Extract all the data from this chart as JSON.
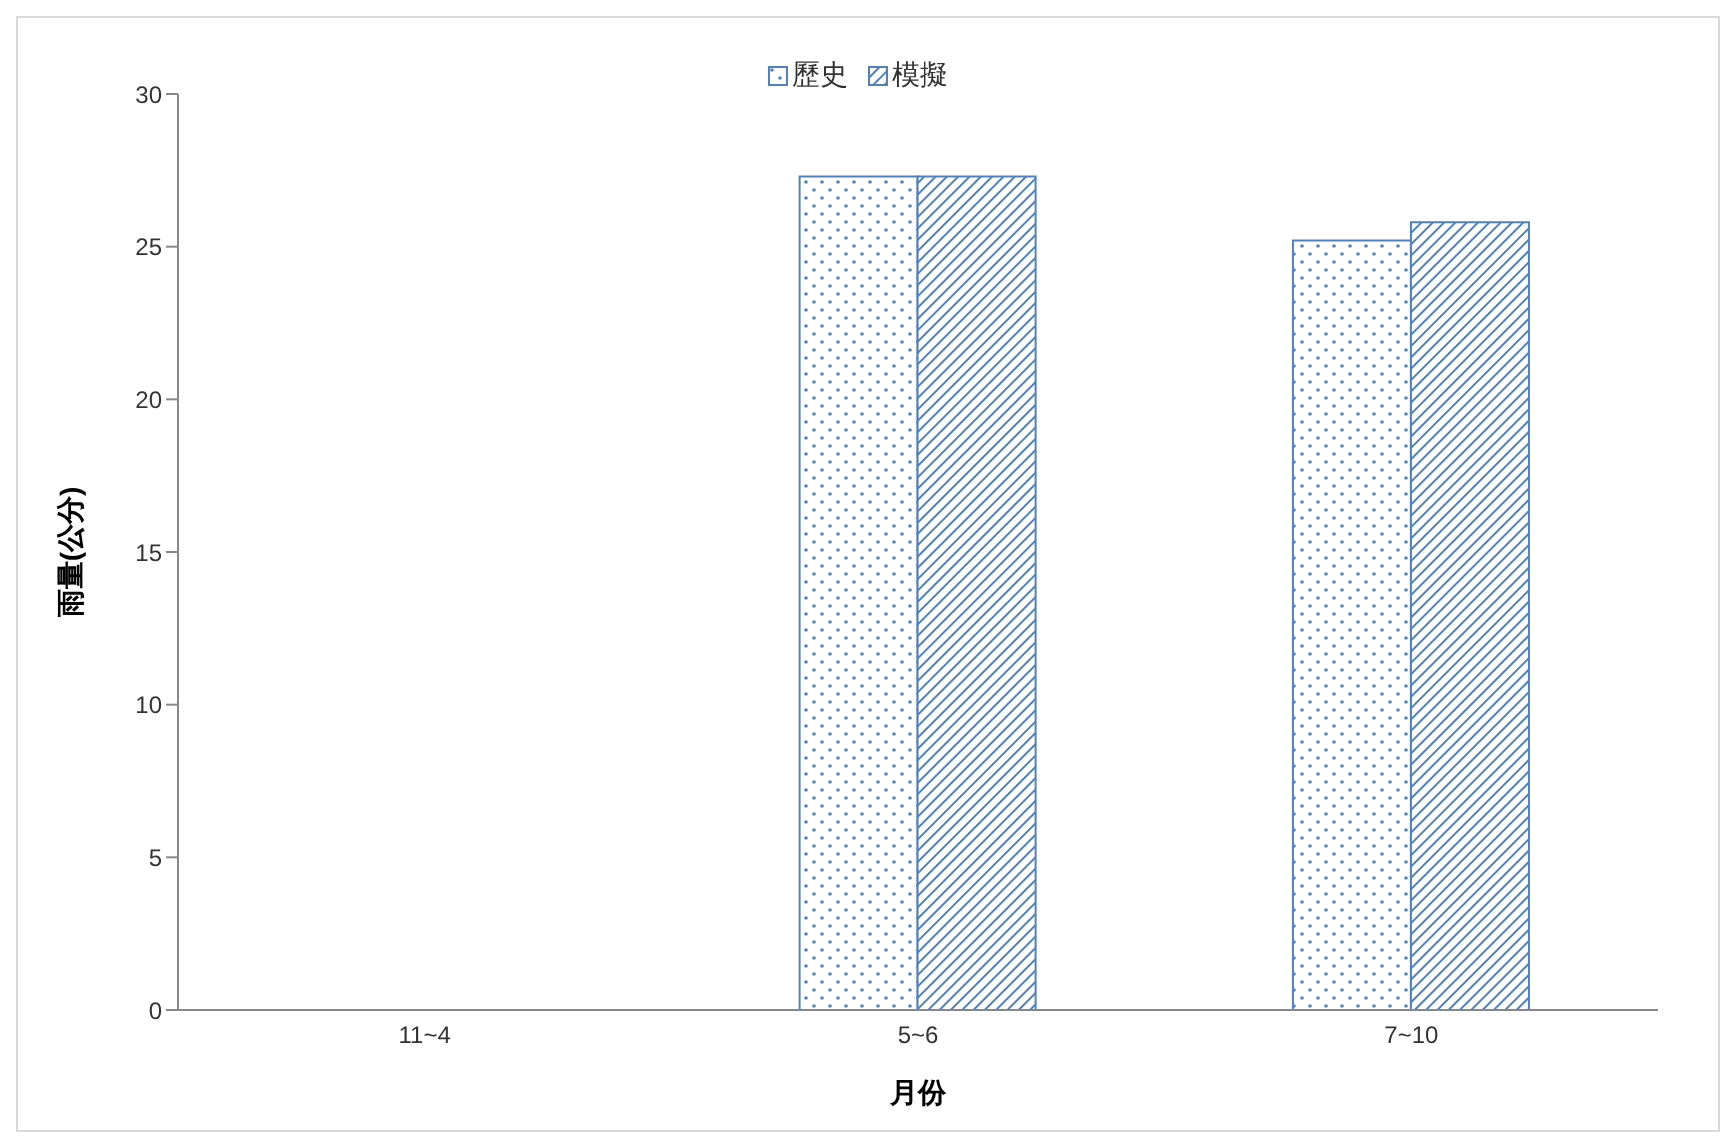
{
  "chart_data": {
    "type": "bar",
    "xlabel": "月份",
    "ylabel": "雨量(公分)",
    "categories": [
      "11~4",
      "5~6",
      "7~10"
    ],
    "series": [
      {
        "name": "歷史",
        "color": "#4f81bd",
        "values": [
          0,
          27.3,
          25.2
        ]
      },
      {
        "name": "模擬",
        "color": "#4f81bd",
        "values": [
          0,
          27.3,
          25.8
        ]
      }
    ],
    "ylim": [
      0,
      30
    ],
    "yticks": [
      0,
      5,
      10,
      15,
      20,
      25,
      30
    ],
    "grid": false,
    "legend": "top"
  }
}
